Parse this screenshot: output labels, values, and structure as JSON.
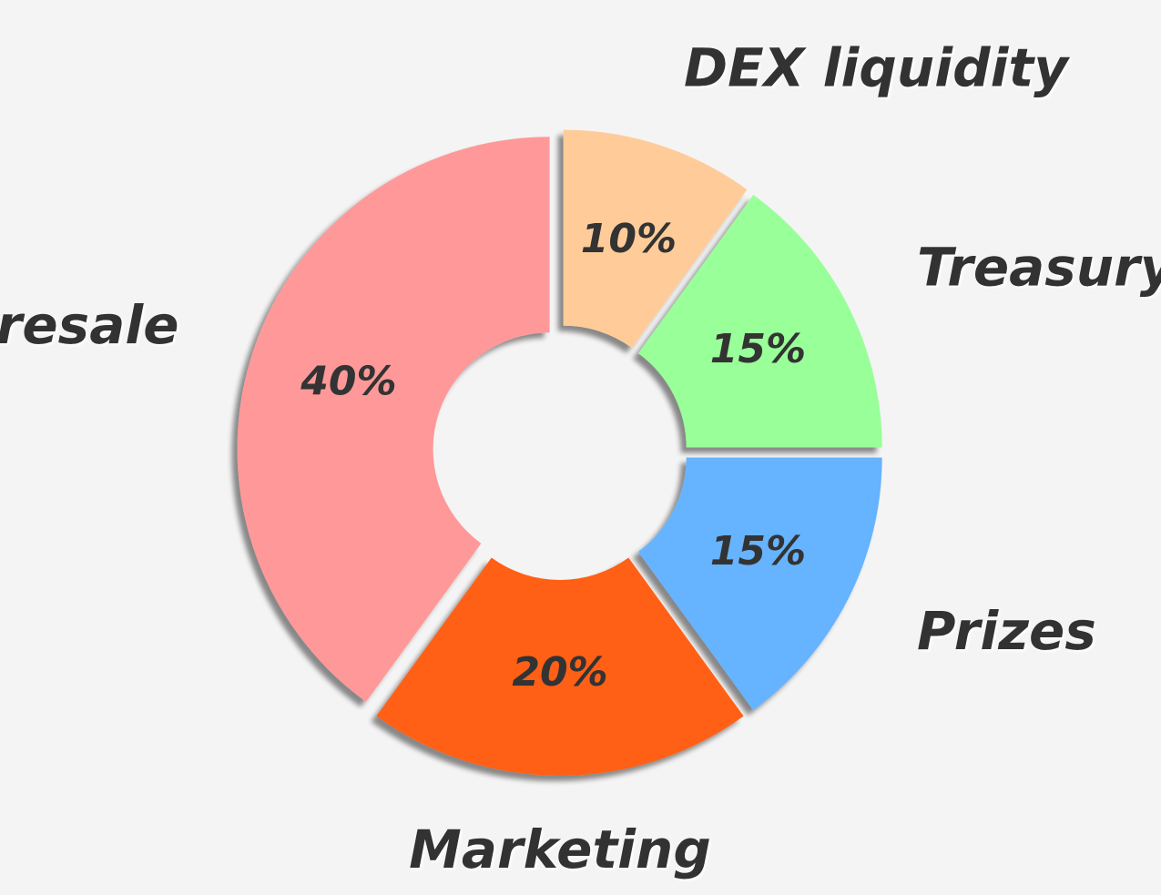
{
  "chart_data": {
    "type": "pie",
    "title": "",
    "legend": "none",
    "slices": [
      {
        "label": "DEX liquidity",
        "value": 10,
        "value_label": "10%",
        "color": "#ffcc99"
      },
      {
        "label": "Treasury",
        "value": 15,
        "value_label": "15%",
        "color": "#99ff99"
      },
      {
        "label": "Prizes",
        "value": 15,
        "value_label": "15%",
        "color": "#66b3ff"
      },
      {
        "label": "Marketing",
        "value": 20,
        "value_label": "20%",
        "color": "#ff6119"
      },
      {
        "label": "Presale",
        "value": 40,
        "value_label": "40%",
        "color": "#ff9999"
      }
    ]
  }
}
